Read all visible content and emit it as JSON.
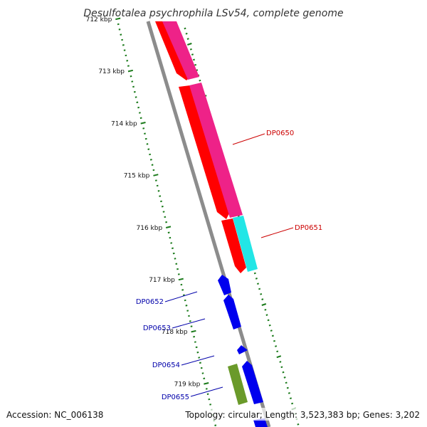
{
  "title": "Desulfotalea psychrophila LSv54, complete genome",
  "footer": {
    "accession": "Accession: NC_006138",
    "summary": "Topology: circular; Length: 3,523,383 bp; Genes: 3,202"
  },
  "colors": {
    "backbone": "#8c8c8c",
    "backbone_dark": "#666666",
    "tick": "#1a7a1a",
    "forward_red": "#ff0000",
    "forward_magenta": "#ee2288",
    "cyan": "#22e6e6",
    "blue": "#0000ee",
    "olive": "#6a9a2a",
    "label_red": "#cc0000",
    "label_blue": "#0000aa"
  },
  "ticks": [
    {
      "label": "712 kbp"
    },
    {
      "label": "713 kbp"
    },
    {
      "label": "714 kbp"
    },
    {
      "label": "715 kbp"
    },
    {
      "label": "716 kbp"
    },
    {
      "label": "717 kbp"
    },
    {
      "label": "718 kbp"
    },
    {
      "label": "719 kbp"
    }
  ],
  "gene_labels": [
    {
      "id": "DP0650",
      "color": "label_red"
    },
    {
      "id": "DP0651",
      "color": "label_red"
    },
    {
      "id": "DP0652",
      "color": "label_blue"
    },
    {
      "id": "DP0653",
      "color": "label_blue"
    },
    {
      "id": "DP0654",
      "color": "label_blue"
    },
    {
      "id": "DP0655",
      "color": "label_blue"
    }
  ]
}
